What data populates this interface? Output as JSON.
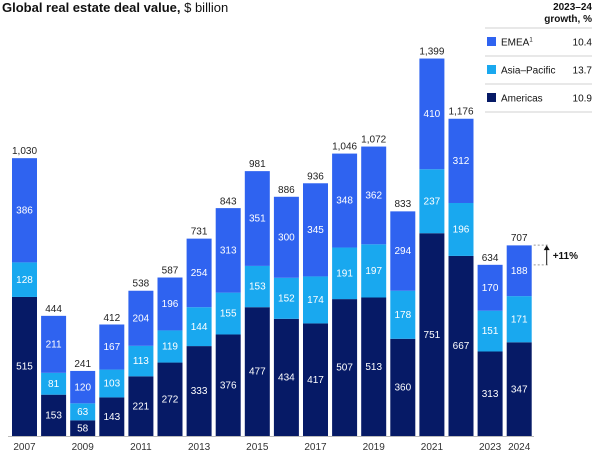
{
  "title": {
    "bold": "Global real estate deal value,",
    "rest": "$ billion"
  },
  "colors": {
    "emea": "#2f63f0",
    "apac": "#19a8ef",
    "americas": "#061a66"
  },
  "chart_data": {
    "type": "bar",
    "stacked": true,
    "title": "Global real estate deal value, $ billion",
    "categories": [
      "2007",
      "2008",
      "2009",
      "2010",
      "2011",
      "2012",
      "2013",
      "2014",
      "2015",
      "2016",
      "2017",
      "2018",
      "2019",
      "2020",
      "2021",
      "2022",
      "2023",
      "2024"
    ],
    "x_tick_labels": [
      "2007",
      "",
      "2009",
      "",
      "2011",
      "",
      "2013",
      "",
      "2015",
      "",
      "2017",
      "",
      "2019",
      "",
      "2021",
      "",
      "2023",
      "2024"
    ],
    "series": [
      {
        "name": "Americas",
        "values": [
          515,
          153,
          58,
          143,
          221,
          272,
          333,
          376,
          477,
          434,
          417,
          507,
          513,
          360,
          751,
          667,
          313,
          347
        ]
      },
      {
        "name": "Asia–Pacific",
        "values": [
          128,
          81,
          63,
          103,
          113,
          119,
          144,
          155,
          153,
          152,
          174,
          191,
          197,
          178,
          237,
          196,
          151,
          171
        ]
      },
      {
        "name": "EMEA¹",
        "values": [
          386,
          211,
          120,
          167,
          204,
          196,
          254,
          313,
          351,
          300,
          345,
          348,
          362,
          294,
          410,
          312,
          170,
          188
        ]
      }
    ],
    "totals": [
      1030,
      444,
      241,
      412,
      538,
      587,
      731,
      843,
      981,
      886,
      936,
      1046,
      1072,
      833,
      1399,
      1176,
      634,
      707
    ],
    "ylim": [
      0,
      1400
    ],
    "annotation": "+11%",
    "legend": {
      "placement": "top-right",
      "header_line1": "2023–24",
      "header_line2": "growth, %",
      "items": [
        {
          "label": "EMEA",
          "sup": "1",
          "growth": "10.4",
          "color_key": "emea"
        },
        {
          "label": "Asia–Pacific",
          "sup": "",
          "growth": "13.7",
          "color_key": "apac"
        },
        {
          "label": "Americas",
          "sup": "",
          "growth": "10.9",
          "color_key": "americas"
        }
      ]
    }
  }
}
